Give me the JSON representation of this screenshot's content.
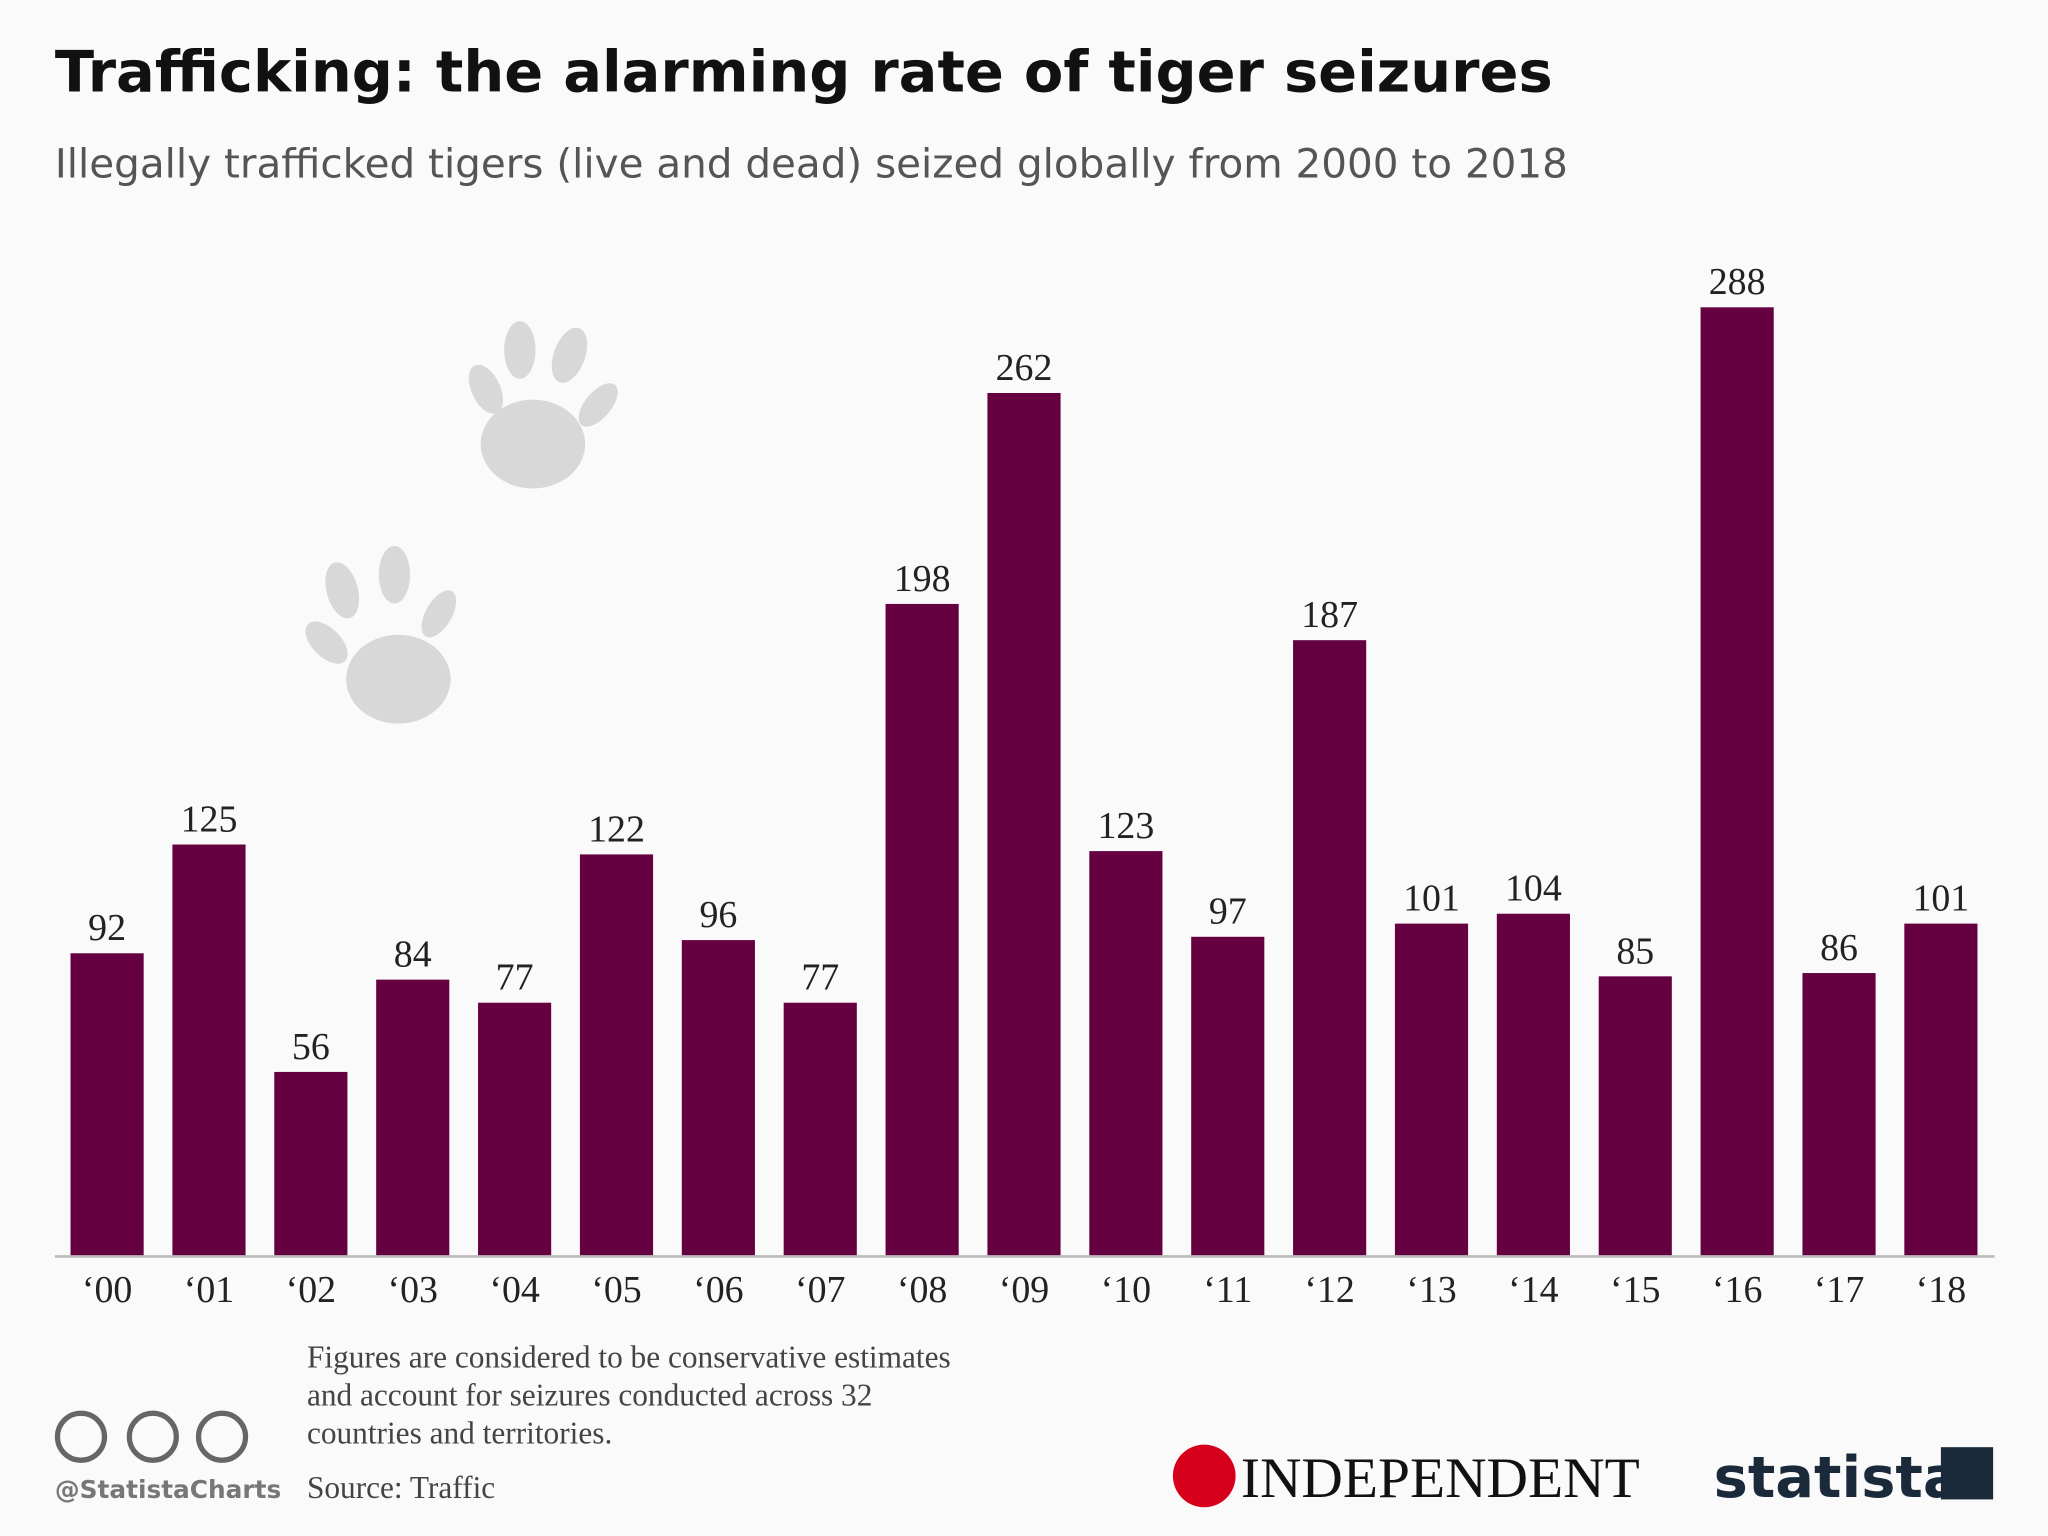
{
  "chart_data": {
    "type": "bar",
    "title": "Trafficking: the alarming rate of tiger seizures",
    "subtitle": "Illegally trafficked tigers (live and dead) seized globally from 2000 to 2018",
    "categories": [
      "‘00",
      "‘01",
      "‘02",
      "‘03",
      "‘04",
      "‘05",
      "‘06",
      "‘07",
      "‘08",
      "‘09",
      "‘10",
      "‘11",
      "‘12",
      "‘13",
      "‘14",
      "‘15",
      "‘16",
      "‘17",
      "‘18"
    ],
    "values": [
      92,
      125,
      56,
      84,
      77,
      122,
      96,
      77,
      198,
      262,
      123,
      97,
      187,
      101,
      104,
      85,
      288,
      86,
      101
    ],
    "color": "#650041",
    "ylim": [
      0,
      300
    ],
    "note": [
      "Figures are considered to be conservative estimates",
      "and account for seizures conducted across 32",
      "countries and territories."
    ],
    "source": "Source: Traffic",
    "handle": "@StatistaCharts",
    "partner": "INDEPENDENT",
    "brand": "statista"
  }
}
